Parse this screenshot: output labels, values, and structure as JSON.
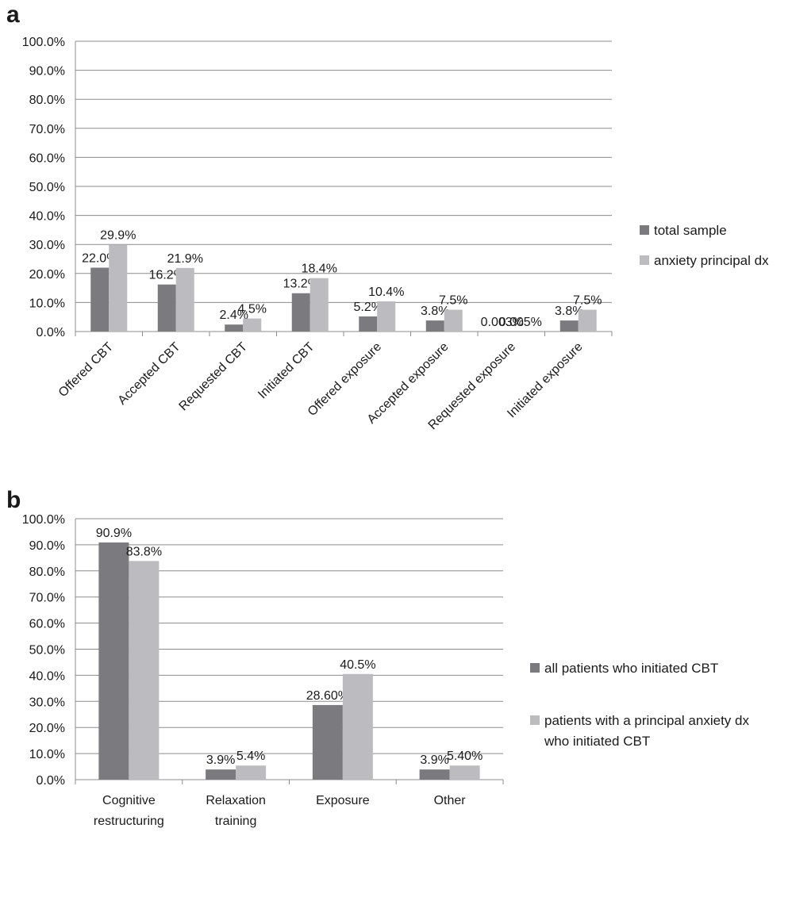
{
  "chart_data": [
    {
      "panel_label": "a",
      "type": "bar",
      "categories": [
        "Offered CBT",
        "Accepted CBT",
        "Requested CBT",
        "Initiated CBT",
        "Offered exposure",
        "Accepted exposure",
        "Requested exposure",
        "Initiated exposure"
      ],
      "series": [
        {
          "name": "total sample",
          "color": "#7b7b7f",
          "values": [
            22.0,
            16.2,
            2.4,
            13.2,
            5.2,
            3.8,
            0.003,
            3.8
          ],
          "labels": [
            "22.0%",
            "16.2%",
            "2.4%",
            "13.2%",
            "5.2%",
            "3.8%",
            "0.003%",
            "3.8%"
          ]
        },
        {
          "name": "anxiety principal dx",
          "color": "#bcbcc0",
          "values": [
            29.9,
            21.9,
            4.5,
            18.4,
            10.4,
            7.5,
            0.005,
            7.5
          ],
          "labels": [
            "29.9%",
            "21.9%",
            "4.5%",
            "18.4%",
            "10.4%",
            "7.5%",
            "0.005%",
            "7.5%"
          ]
        }
      ],
      "yticks": [
        "0.0%",
        "10.0%",
        "20.0%",
        "30.0%",
        "40.0%",
        "50.0%",
        "60.0%",
        "70.0%",
        "80.0%",
        "90.0%",
        "100.0%"
      ],
      "ylim": [
        0,
        100
      ],
      "grid": true,
      "legend": "right"
    },
    {
      "panel_label": "b",
      "type": "bar",
      "categories": [
        "Cognitive restructuring",
        "Relaxation training",
        "Exposure",
        "Other"
      ],
      "series": [
        {
          "name": "all patients who initiated CBT",
          "color": "#7b7b7f",
          "values": [
            90.9,
            3.9,
            28.6,
            3.9
          ],
          "labels": [
            "90.9%",
            "3.9%",
            "28.60%",
            "3.9%"
          ]
        },
        {
          "name": "patients with a principal anxiety dx who initiated CBT",
          "color": "#bcbcc0",
          "values": [
            83.8,
            5.4,
            40.5,
            5.4
          ],
          "labels": [
            "83.8%",
            "5.4%",
            "40.5%",
            "5.40%"
          ]
        }
      ],
      "yticks": [
        "0.0%",
        "10.0%",
        "20.0%",
        "30.0%",
        "40.0%",
        "50.0%",
        "60.0%",
        "70.0%",
        "80.0%",
        "90.0%",
        "100.0%"
      ],
      "ylim": [
        0,
        100
      ],
      "grid": true,
      "legend": "right"
    }
  ]
}
